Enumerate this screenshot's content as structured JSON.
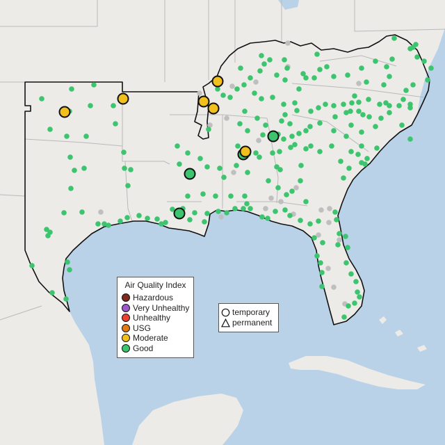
{
  "legend_aqi": {
    "title": "Air Quality Index",
    "items": [
      {
        "label": "Hazardous",
        "color": "#7e2a1f"
      },
      {
        "label": "Very Unhealthy",
        "color": "#9b59c9"
      },
      {
        "label": "Unhealthy",
        "color": "#e8432e"
      },
      {
        "label": "USG",
        "color": "#e07b16"
      },
      {
        "label": "Moderate",
        "color": "#f2c01d"
      },
      {
        "label": "Good",
        "color": "#3cc46e"
      }
    ]
  },
  "legend_type": {
    "items": [
      {
        "label": "temporary",
        "shape": "circle"
      },
      {
        "label": "permanent",
        "shape": "triangle"
      }
    ]
  },
  "colors": {
    "land": "#ecebe7",
    "water": "#b9d2e8",
    "border": "#111111",
    "inactive": "#bfbfbf"
  }
}
